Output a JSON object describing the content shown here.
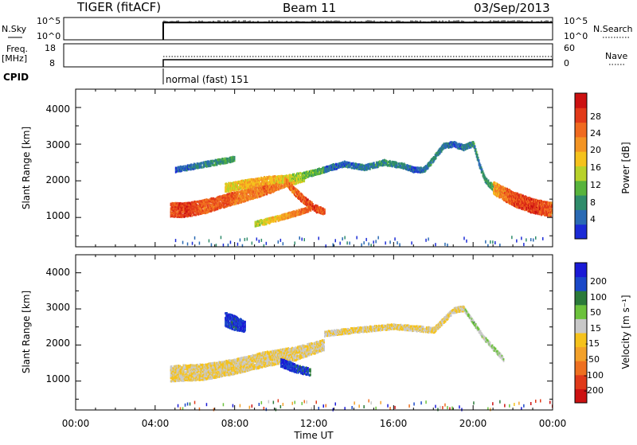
{
  "header": {
    "radar": "TIGER",
    "fit": "(fitACF)",
    "beam": "Beam 11",
    "date": "03/Sep/2013"
  },
  "colors": {
    "power": [
      "#1b2bd6",
      "#2a6ab4",
      "#2f8c6b",
      "#58b43c",
      "#b8d22a",
      "#f5c21c",
      "#f39423",
      "#f06a1f",
      "#e23a19",
      "#cc1111"
    ],
    "velocity": [
      "#1a1ad6",
      "#1a48c8",
      "#2b7a3a",
      "#6cc23c",
      "#c8c8c8",
      "#f5c21c",
      "#f3a12a",
      "#ee7020",
      "#e03a1a",
      "#cc1111"
    ],
    "ground": "#bfbfbf"
  },
  "strips": {
    "nsky": {
      "label": "N.Sky",
      "left_ticks": [
        "10^5",
        "10^0"
      ],
      "right_label": "N.Search",
      "right_ticks": [
        "10^5",
        "10^0"
      ],
      "start": "04:45",
      "level": 0.78
    },
    "freq": {
      "label_line1": "Freq.",
      "label_line2": "[MHz]",
      "left_ticks": [
        "18",
        "8"
      ],
      "right_label": "Nave",
      "right_ticks": [
        "60",
        "0"
      ],
      "start": "04:45"
    },
    "cpid": {
      "label": "CPID",
      "text": "normal (fast) 151",
      "start": "04:45"
    }
  },
  "panels": {
    "power": {
      "ylabel": "Slant Range [km]",
      "yticks": [
        "4000",
        "3000",
        "2000",
        "1000"
      ],
      "cbar_label": "Power [dB]",
      "cbar_ticks": [
        "28",
        "24",
        "20",
        "16",
        "12",
        "8",
        "4"
      ]
    },
    "velocity": {
      "ylabel": "Slant Range [km]",
      "yticks": [
        "4000",
        "3000",
        "2000",
        "1000"
      ],
      "cbar_label": "Velocity [m s⁻¹]",
      "cbar_ticks": [
        "200",
        "100",
        "50",
        "15",
        "-15",
        "-50",
        "-100",
        "-200"
      ]
    }
  },
  "xaxis": {
    "label": "Time UT",
    "ticks": [
      "00:00",
      "04:00",
      "08:00",
      "12:00",
      "16:00",
      "20:00",
      "00:00"
    ]
  },
  "chart_data": [
    {
      "type": "heatmap",
      "title": "Power [dB]",
      "xlabel": "Time UT",
      "ylabel": "Slant Range [km]",
      "x_range": [
        0,
        24
      ],
      "y_range": [
        200,
        4500
      ],
      "color_range": [
        0,
        32
      ],
      "regions": [
        {
          "name": "lower-band",
          "t": [
            4.75,
            5.5,
            6.5,
            7.5,
            8.5,
            9.5,
            10.5,
            11.0,
            11.5
          ],
          "r": [
            1200,
            1200,
            1300,
            1450,
            1600,
            1750,
            1950,
            2000,
            2050
          ],
          "thick": [
            400,
            400,
            380,
            350,
            330,
            300,
            260,
            200,
            150
          ],
          "value": [
            26,
            28,
            24,
            26,
            22,
            24,
            22,
            18,
            14
          ]
        },
        {
          "name": "upper-band",
          "t": [
            7.5,
            8.5,
            9.5,
            10.5,
            11.5,
            12.5,
            13.0
          ],
          "r": [
            1800,
            1900,
            2000,
            2050,
            2150,
            2300,
            2400
          ],
          "thick": [
            250,
            250,
            220,
            200,
            180,
            150,
            140
          ],
          "value": [
            16,
            18,
            20,
            16,
            12,
            10,
            8
          ]
        },
        {
          "name": "descending-tail",
          "t": [
            10.5,
            11.0,
            11.5,
            12.0,
            12.5
          ],
          "r": [
            2000,
            1700,
            1450,
            1250,
            1150
          ],
          "thick": [
            200,
            220,
            220,
            200,
            180
          ],
          "value": [
            22,
            24,
            26,
            28,
            24
          ]
        },
        {
          "name": "loop",
          "t": [
            9.0,
            10.0,
            11.0,
            11.8
          ],
          "r": [
            820,
            950,
            1100,
            1250
          ],
          "thick": [
            150,
            160,
            160,
            150
          ],
          "value": [
            14,
            18,
            22,
            26
          ]
        },
        {
          "name": "wave-trace",
          "t": [
            12.5,
            13.5,
            14.5,
            15.5,
            16.5,
            17.0,
            17.5,
            18.0,
            18.5,
            19.0,
            19.5,
            20.0,
            20.3,
            20.6,
            21.0,
            21.5,
            22.0,
            22.5,
            23.0
          ],
          "r": [
            2300,
            2450,
            2350,
            2500,
            2400,
            2300,
            2300,
            2600,
            2950,
            3000,
            2900,
            3000,
            2400,
            2000,
            1800,
            1700,
            1500,
            1400,
            1300
          ],
          "thick": [
            160,
            160,
            160,
            150,
            150,
            150,
            150,
            160,
            160,
            150,
            160,
            160,
            160,
            160,
            180,
            180,
            180,
            180,
            180
          ],
          "value": [
            6,
            4,
            6,
            8,
            6,
            4,
            6,
            8,
            6,
            4,
            6,
            8,
            6,
            8,
            10,
            14,
            18,
            22,
            26
          ]
        },
        {
          "name": "morning-upper",
          "t": [
            5.0,
            6.0,
            7.0,
            8.0
          ],
          "r": [
            2300,
            2400,
            2500,
            2600
          ],
          "thick": [
            150,
            150,
            150,
            150
          ],
          "value": [
            4,
            6,
            8,
            10
          ]
        },
        {
          "name": "evening",
          "t": [
            21.0,
            22.0,
            23.0,
            24.0
          ],
          "r": [
            1800,
            1500,
            1300,
            1200
          ],
          "thick": [
            350,
            400,
            400,
            400
          ],
          "value": [
            20,
            26,
            28,
            24
          ]
        }
      ]
    },
    {
      "type": "heatmap",
      "title": "Velocity [m s⁻¹]",
      "xlabel": "Time UT",
      "ylabel": "Slant Range [km]",
      "x_range": [
        0,
        24
      ],
      "y_range": [
        200,
        4500
      ],
      "color_range": [
        -250,
        250
      ],
      "regions": [
        {
          "name": "ground-scatter-band",
          "t": [
            4.75,
            6.5,
            8.0,
            9.5,
            11.0,
            12.5
          ],
          "r": [
            1200,
            1250,
            1400,
            1600,
            1750,
            2000
          ],
          "thick": [
            450,
            450,
            420,
            420,
            380,
            300
          ],
          "value": [
            0,
            0,
            0,
            0,
            0,
            0
          ]
        },
        {
          "name": "blue-patch",
          "t": [
            10.3,
            10.8,
            11.3,
            11.8
          ],
          "r": [
            1500,
            1400,
            1300,
            1250
          ],
          "thick": [
            250,
            250,
            220,
            200
          ],
          "value": [
            220,
            200,
            180,
            160
          ]
        },
        {
          "name": "green-arc",
          "t": [
            19.5,
            20.0,
            20.5,
            21.0,
            21.5
          ],
          "r": [
            3000,
            2600,
            2200,
            1900,
            1600
          ],
          "thick": [
            120,
            120,
            120,
            120,
            120
          ],
          "value": [
            50,
            60,
            40,
            50,
            40
          ]
        },
        {
          "name": "grey-trace",
          "t": [
            12.5,
            14.0,
            16.0,
            18.0,
            19.0,
            19.5
          ],
          "r": [
            2300,
            2400,
            2500,
            2400,
            2950,
            3000
          ],
          "thick": [
            160,
            160,
            160,
            160,
            160,
            160
          ],
          "value": [
            0,
            0,
            0,
            0,
            0,
            0
          ]
        },
        {
          "name": "morning-blue",
          "t": [
            7.5,
            8.0,
            8.5
          ],
          "r": [
            2700,
            2600,
            2500
          ],
          "thick": [
            400,
            400,
            300
          ],
          "value": [
            200,
            180,
            220
          ]
        }
      ]
    }
  ]
}
